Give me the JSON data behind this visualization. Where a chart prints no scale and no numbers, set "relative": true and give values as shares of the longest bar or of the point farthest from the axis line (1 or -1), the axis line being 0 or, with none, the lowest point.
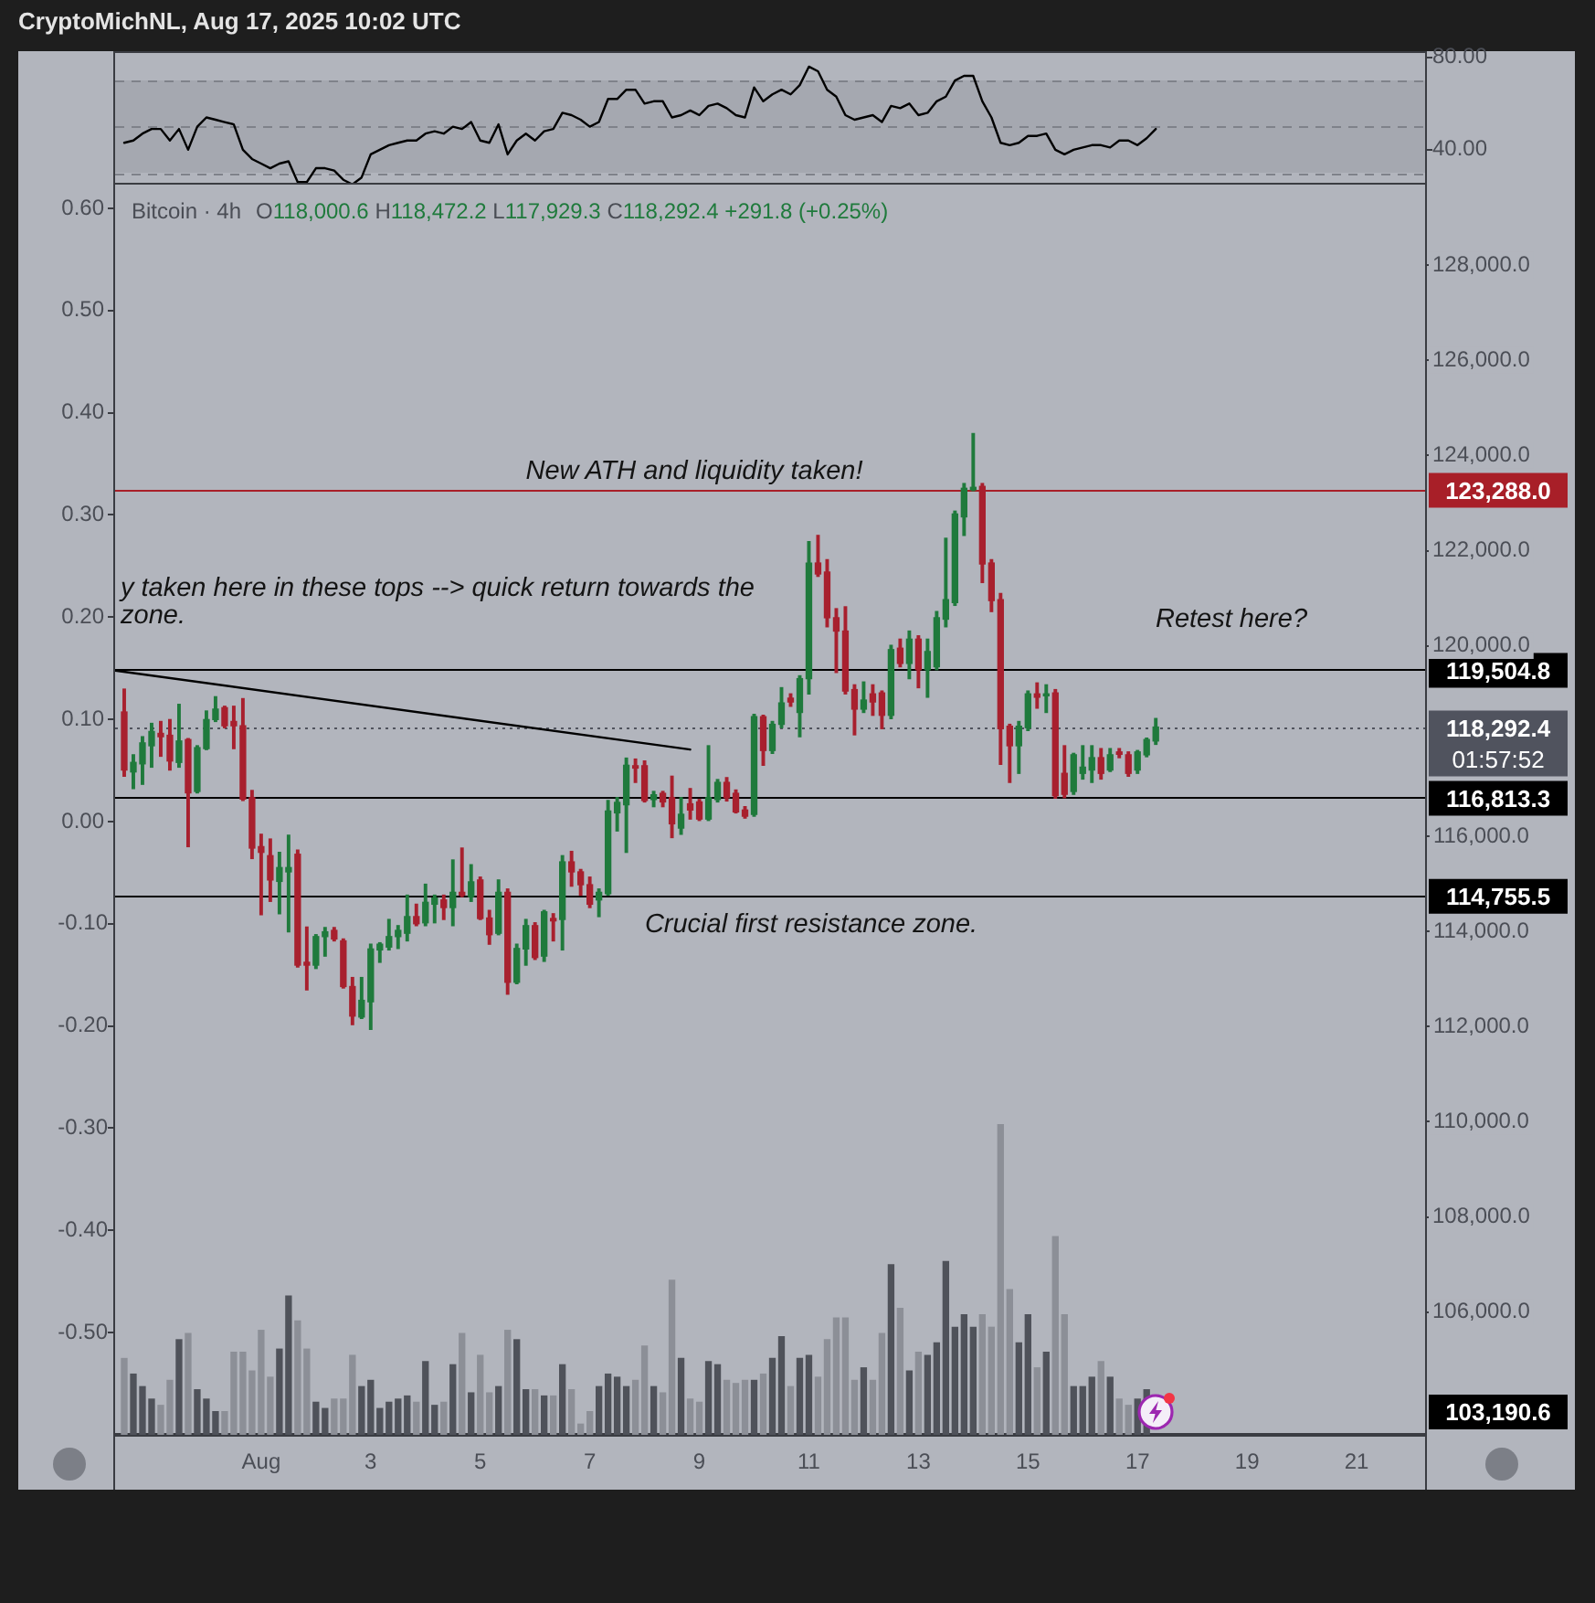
{
  "chart_data": [
    {
      "type": "line",
      "annotations": [
        "CryptoMichNL, Aug 17, 2025 10:02 UTC"
      ],
      "x": [
        "2025-07-29T12:00",
        "2025-07-29T16:00",
        "2025-07-29T20:00",
        "2025-07-30T00:00",
        "2025-07-30T04:00",
        "2025-07-30T08:00",
        "2025-07-30T12:00",
        "2025-07-30T16:00",
        "2025-07-30T20:00",
        "2025-07-31T00:00",
        "2025-07-31T04:00",
        "2025-07-31T08:00",
        "2025-07-31T12:00",
        "2025-07-31T16:00",
        "2025-07-31T20:00",
        "2025-08-01T00:00",
        "2025-08-01T04:00",
        "2025-08-01T08:00",
        "2025-08-01T12:00",
        "2025-08-01T16:00",
        "2025-08-01T20:00",
        "2025-08-02T00:00",
        "2025-08-02T04:00",
        "2025-08-02T08:00",
        "2025-08-02T12:00",
        "2025-08-02T16:00",
        "2025-08-02T20:00",
        "2025-08-03T00:00",
        "2025-08-03T04:00",
        "2025-08-03T08:00",
        "2025-08-03T12:00",
        "2025-08-03T16:00",
        "2025-08-03T20:00",
        "2025-08-04T00:00",
        "2025-08-04T04:00",
        "2025-08-04T08:00",
        "2025-08-04T12:00",
        "2025-08-04T16:00",
        "2025-08-04T20:00",
        "2025-08-05T00:00",
        "2025-08-05T04:00",
        "2025-08-05T08:00",
        "2025-08-05T12:00",
        "2025-08-05T16:00",
        "2025-08-05T20:00",
        "2025-08-06T00:00",
        "2025-08-06T04:00",
        "2025-08-06T08:00",
        "2025-08-06T12:00",
        "2025-08-06T16:00",
        "2025-08-06T20:00",
        "2025-08-07T00:00",
        "2025-08-07T04:00",
        "2025-08-07T08:00",
        "2025-08-07T12:00",
        "2025-08-07T16:00",
        "2025-08-07T20:00",
        "2025-08-08T00:00",
        "2025-08-08T04:00",
        "2025-08-08T08:00",
        "2025-08-08T12:00",
        "2025-08-08T16:00",
        "2025-08-08T20:00",
        "2025-08-09T00:00",
        "2025-08-09T04:00",
        "2025-08-09T08:00",
        "2025-08-09T12:00",
        "2025-08-09T16:00",
        "2025-08-09T20:00",
        "2025-08-10T00:00",
        "2025-08-10T04:00",
        "2025-08-10T08:00",
        "2025-08-10T12:00",
        "2025-08-10T16:00",
        "2025-08-10T20:00",
        "2025-08-11T00:00",
        "2025-08-11T04:00",
        "2025-08-11T08:00",
        "2025-08-11T12:00",
        "2025-08-11T16:00",
        "2025-08-11T20:00",
        "2025-08-12T00:00",
        "2025-08-12T04:00",
        "2025-08-12T08:00",
        "2025-08-12T12:00",
        "2025-08-12T16:00",
        "2025-08-12T20:00",
        "2025-08-13T00:00",
        "2025-08-13T04:00",
        "2025-08-13T08:00",
        "2025-08-13T12:00",
        "2025-08-13T16:00",
        "2025-08-13T20:00",
        "2025-08-14T00:00",
        "2025-08-14T04:00",
        "2025-08-14T08:00",
        "2025-08-14T12:00",
        "2025-08-14T16:00",
        "2025-08-14T20:00",
        "2025-08-15T00:00",
        "2025-08-15T04:00",
        "2025-08-15T08:00",
        "2025-08-15T12:00",
        "2025-08-15T16:00",
        "2025-08-15T20:00",
        "2025-08-16T00:00",
        "2025-08-16T04:00",
        "2025-08-16T08:00",
        "2025-08-16T12:00",
        "2025-08-16T16:00",
        "2025-08-16T20:00",
        "2025-08-17T00:00",
        "2025-08-17T04:00",
        "2025-08-17T08:00"
      ],
      "values": [
        43,
        44,
        47,
        49,
        49,
        44,
        49,
        40,
        50,
        54,
        53,
        52,
        51,
        40,
        36,
        34,
        32,
        34,
        35,
        26,
        26,
        32,
        32,
        31,
        27,
        25,
        28,
        38,
        40,
        42,
        43,
        44,
        44,
        47,
        48,
        47,
        50,
        49,
        52,
        44,
        43,
        51,
        38,
        44,
        47,
        44,
        48,
        49,
        56,
        55,
        53,
        50,
        52,
        62,
        62,
        66,
        66,
        60,
        61,
        61,
        54,
        55,
        57,
        55,
        59,
        60,
        58,
        55,
        54,
        67,
        61,
        64,
        66,
        64,
        68,
        76,
        74,
        66,
        63,
        55,
        53,
        54,
        55,
        52,
        59,
        58,
        60,
        55,
        56,
        61,
        63,
        70,
        72,
        72,
        61,
        54,
        43,
        42,
        43,
        46,
        46,
        47,
        40,
        38,
        40,
        41,
        42,
        42,
        41,
        44,
        44,
        42,
        45,
        49
      ],
      "color": "#000000",
      "xlim": [
        "2025-07-29T08:00",
        "2025-08-22T06:00"
      ],
      "ylim": [
        24.9,
        82.7
      ],
      "yticks": [
        {
          "value": 80,
          "label": "80.00"
        },
        {
          "value": 40,
          "label": "40.00"
        }
      ],
      "bands": [
        {
          "axis": "y",
          "from": 30,
          "to": 70,
          "color": "#a5a8b0"
        }
      ],
      "ref_lines": [
        {
          "axis": "y",
          "value": 70,
          "color": "#7f828a",
          "line_style": "dashed"
        },
        {
          "axis": "y",
          "value": 50,
          "color": "#7f828a",
          "line_style": "dashed"
        },
        {
          "axis": "y",
          "value": 30,
          "color": "#7f828a",
          "line_style": "dashed"
        }
      ],
      "tick_labels": "y"
    },
    {
      "type": "candlestick",
      "title": "Bitcoin · 4h",
      "subtitle": "O118,000.6 H118,472.2 L117,929.3 C118,292.4 +291.8 (+0.25%)",
      "x": [
        "2025-07-29T12:00",
        "2025-07-29T16:00",
        "2025-07-29T20:00",
        "2025-07-30T00:00",
        "2025-07-30T04:00",
        "2025-07-30T08:00",
        "2025-07-30T12:00",
        "2025-07-30T16:00",
        "2025-07-30T20:00",
        "2025-07-31T00:00",
        "2025-07-31T04:00",
        "2025-07-31T08:00",
        "2025-07-31T12:00",
        "2025-07-31T16:00",
        "2025-07-31T20:00",
        "2025-08-01T00:00",
        "2025-08-01T04:00",
        "2025-08-01T08:00",
        "2025-08-01T12:00",
        "2025-08-01T16:00",
        "2025-08-01T20:00",
        "2025-08-02T00:00",
        "2025-08-02T04:00",
        "2025-08-02T08:00",
        "2025-08-02T12:00",
        "2025-08-02T16:00",
        "2025-08-02T20:00",
        "2025-08-03T00:00",
        "2025-08-03T04:00",
        "2025-08-03T08:00",
        "2025-08-03T12:00",
        "2025-08-03T16:00",
        "2025-08-03T20:00",
        "2025-08-04T00:00",
        "2025-08-04T04:00",
        "2025-08-04T08:00",
        "2025-08-04T12:00",
        "2025-08-04T16:00",
        "2025-08-04T20:00",
        "2025-08-05T00:00",
        "2025-08-05T04:00",
        "2025-08-05T08:00",
        "2025-08-05T12:00",
        "2025-08-05T16:00",
        "2025-08-05T20:00",
        "2025-08-06T00:00",
        "2025-08-06T04:00",
        "2025-08-06T08:00",
        "2025-08-06T12:00",
        "2025-08-06T16:00",
        "2025-08-06T20:00",
        "2025-08-07T00:00",
        "2025-08-07T04:00",
        "2025-08-07T08:00",
        "2025-08-07T12:00",
        "2025-08-07T16:00",
        "2025-08-07T20:00",
        "2025-08-08T00:00",
        "2025-08-08T04:00",
        "2025-08-08T08:00",
        "2025-08-08T12:00",
        "2025-08-08T16:00",
        "2025-08-08T20:00",
        "2025-08-09T00:00",
        "2025-08-09T04:00",
        "2025-08-09T08:00",
        "2025-08-09T12:00",
        "2025-08-09T16:00",
        "2025-08-09T20:00",
        "2025-08-10T00:00",
        "2025-08-10T04:00",
        "2025-08-10T08:00",
        "2025-08-10T12:00",
        "2025-08-10T16:00",
        "2025-08-10T20:00",
        "2025-08-11T00:00",
        "2025-08-11T04:00",
        "2025-08-11T08:00",
        "2025-08-11T12:00",
        "2025-08-11T16:00",
        "2025-08-11T20:00",
        "2025-08-12T00:00",
        "2025-08-12T04:00",
        "2025-08-12T08:00",
        "2025-08-12T12:00",
        "2025-08-12T16:00",
        "2025-08-12T20:00",
        "2025-08-13T00:00",
        "2025-08-13T04:00",
        "2025-08-13T08:00",
        "2025-08-13T12:00",
        "2025-08-13T16:00",
        "2025-08-13T20:00",
        "2025-08-14T00:00",
        "2025-08-14T04:00",
        "2025-08-14T08:00",
        "2025-08-14T12:00",
        "2025-08-14T16:00",
        "2025-08-14T20:00",
        "2025-08-15T00:00",
        "2025-08-15T04:00",
        "2025-08-15T08:00",
        "2025-08-15T12:00",
        "2025-08-15T16:00",
        "2025-08-15T20:00",
        "2025-08-16T00:00",
        "2025-08-16T04:00",
        "2025-08-16T08:00",
        "2025-08-16T12:00",
        "2025-08-16T16:00",
        "2025-08-16T20:00",
        "2025-08-17T00:00",
        "2025-08-17T04:00",
        "2025-08-17T08:00"
      ],
      "ohlc": [
        [
          118610,
          119090,
          117260,
          117390
        ],
        [
          117350,
          117710,
          117000,
          117550
        ],
        [
          117520,
          118090,
          117090,
          117960
        ],
        [
          117900,
          118370,
          117450,
          118200
        ],
        [
          118160,
          118410,
          117680,
          118090
        ],
        [
          118120,
          118450,
          117390,
          117580
        ],
        [
          117550,
          118770,
          117450,
          118000
        ],
        [
          118030,
          118050,
          115780,
          116910
        ],
        [
          116940,
          117900,
          116910,
          117860
        ],
        [
          117840,
          118630,
          117820,
          118450
        ],
        [
          118450,
          118930,
          118410,
          118670
        ],
        [
          118700,
          118730,
          118280,
          118320
        ],
        [
          118410,
          118730,
          117840,
          118320
        ],
        [
          118320,
          118890,
          116750,
          116780
        ],
        [
          116810,
          116960,
          115530,
          115750
        ],
        [
          115780,
          116040,
          114350,
          115660
        ],
        [
          115590,
          115940,
          114630,
          115080
        ],
        [
          115050,
          115660,
          114370,
          115340
        ],
        [
          115250,
          116020,
          113990,
          115340
        ],
        [
          115620,
          115710,
          113250,
          113290
        ],
        [
          113350,
          114090,
          112770,
          113290
        ],
        [
          113290,
          113930,
          113220,
          113890
        ],
        [
          113890,
          114080,
          113480,
          113990
        ],
        [
          114020,
          114080,
          113800,
          113840
        ],
        [
          113800,
          113840,
          112810,
          112840
        ],
        [
          112840,
          113030,
          112040,
          112220
        ],
        [
          112200,
          113030,
          112170,
          112550
        ],
        [
          112520,
          113730,
          111940,
          113630
        ],
        [
          113610,
          113760,
          113350,
          113730
        ],
        [
          113670,
          114250,
          113610,
          113890
        ],
        [
          113890,
          114120,
          113640,
          114020
        ],
        [
          113960,
          114760,
          113800,
          114310
        ],
        [
          114310,
          114570,
          114120,
          114160
        ],
        [
          114180,
          114990,
          114120,
          114610
        ],
        [
          114570,
          114760,
          114180,
          114700
        ],
        [
          114660,
          114760,
          114250,
          114500
        ],
        [
          114500,
          115500,
          114120,
          114820
        ],
        [
          114820,
          115750,
          114730,
          114760
        ],
        [
          114730,
          115400,
          114630,
          115040
        ],
        [
          115080,
          115140,
          114250,
          114270
        ],
        [
          114280,
          114440,
          113730,
          113930
        ],
        [
          113960,
          115080,
          113930,
          114820
        ],
        [
          114820,
          114890,
          112680,
          112930
        ],
        [
          112930,
          113730,
          112900,
          113640
        ],
        [
          113630,
          114250,
          113290,
          114120
        ],
        [
          114120,
          114180,
          113410,
          113450
        ],
        [
          113480,
          114440,
          113370,
          114410
        ],
        [
          114270,
          114370,
          113800,
          114220
        ],
        [
          114250,
          115590,
          113610,
          115460
        ],
        [
          115460,
          115680,
          114950,
          115250
        ],
        [
          115250,
          115300,
          114760,
          114980
        ],
        [
          114980,
          115140,
          114500,
          114570
        ],
        [
          114660,
          114890,
          114310,
          114820
        ],
        [
          114790,
          116750,
          114760,
          116530
        ],
        [
          116490,
          116810,
          116110,
          116710
        ],
        [
          116660,
          117640,
          115660,
          117490
        ],
        [
          117480,
          117620,
          117130,
          117430
        ],
        [
          117480,
          117580,
          116720,
          116750
        ],
        [
          116770,
          116940,
          116620,
          116870
        ],
        [
          116900,
          116940,
          116620,
          116720
        ],
        [
          116810,
          117260,
          115970,
          116260
        ],
        [
          116170,
          116810,
          116040,
          116460
        ],
        [
          116680,
          117000,
          116360,
          116550
        ],
        [
          116720,
          116770,
          116330,
          116360
        ],
        [
          116360,
          117900,
          116330,
          116810
        ],
        [
          116770,
          117190,
          116720,
          117130
        ],
        [
          117130,
          117230,
          116740,
          116810
        ],
        [
          116900,
          116970,
          116490,
          116510
        ],
        [
          116550,
          116620,
          116380,
          116420
        ],
        [
          116460,
          118560,
          116420,
          118510
        ],
        [
          118510,
          118540,
          117490,
          117800
        ],
        [
          117800,
          118410,
          117740,
          118350
        ],
        [
          118350,
          119120,
          118280,
          118800
        ],
        [
          118900,
          118990,
          118730,
          118820
        ],
        [
          118600,
          119370,
          118090,
          119310
        ],
        [
          119310,
          122190,
          118990,
          121740
        ],
        [
          121740,
          122320,
          121460,
          121510
        ],
        [
          121550,
          121810,
          120400,
          120590
        ],
        [
          120590,
          120780,
          119440,
          120310
        ],
        [
          120310,
          120820,
          118990,
          119050
        ],
        [
          119080,
          119180,
          118130,
          118670
        ],
        [
          118670,
          119240,
          118600,
          118860
        ],
        [
          118990,
          119180,
          118540,
          118820
        ],
        [
          119010,
          119050,
          118260,
          118540
        ],
        [
          118540,
          120010,
          118470,
          119920
        ],
        [
          119950,
          120140,
          119560,
          119630
        ],
        [
          119630,
          120310,
          119310,
          120140
        ],
        [
          120140,
          120210,
          119120,
          119500
        ],
        [
          119500,
          120140,
          118920,
          119880
        ],
        [
          119560,
          120720,
          119500,
          120590
        ],
        [
          120560,
          122260,
          120400,
          120970
        ],
        [
          120910,
          122830,
          120850,
          122770
        ],
        [
          122710,
          123410,
          122320,
          123310
        ],
        [
          123280,
          124460,
          123260,
          123330
        ],
        [
          123350,
          123410,
          121330,
          121720
        ],
        [
          121740,
          121810,
          120720,
          120950
        ],
        [
          120970,
          121100,
          117510,
          118260
        ],
        [
          118310,
          118350,
          117130,
          117900
        ],
        [
          117900,
          118410,
          117320,
          118310
        ],
        [
          118280,
          119050,
          118220,
          118990
        ],
        [
          118990,
          119220,
          118690,
          118920
        ],
        [
          118950,
          119180,
          118600,
          118990
        ],
        [
          119010,
          119080,
          116800,
          116850
        ],
        [
          117320,
          117900,
          116810,
          116880
        ],
        [
          116940,
          117740,
          116880,
          117710
        ],
        [
          117320,
          117900,
          117200,
          117450
        ],
        [
          117390,
          117900,
          117130,
          117650
        ],
        [
          117650,
          117840,
          117200,
          117320
        ],
        [
          117390,
          117840,
          117360,
          117710
        ],
        [
          117770,
          117840,
          117650,
          117720
        ],
        [
          117710,
          117770,
          117260,
          117320
        ],
        [
          117390,
          117800,
          117320,
          117770
        ],
        [
          117710,
          118060,
          117670,
          118030
        ],
        [
          118000.6,
          118472.2,
          117929.3,
          118292.4
        ]
      ],
      "colors": [
        "#a8202e",
        "#1f7a3c",
        "#1f7a3c",
        "#1f7a3c",
        "#a8202e",
        "#a8202e",
        "#1f7a3c",
        "#a8202e",
        "#1f7a3c",
        "#1f7a3c",
        "#1f7a3c",
        "#a8202e",
        "#a8202e",
        "#a8202e",
        "#a8202e",
        "#a8202e",
        "#a8202e",
        "#1f7a3c",
        "#1f7a3c",
        "#a8202e",
        "#a8202e",
        "#1f7a3c",
        "#1f7a3c",
        "#a8202e",
        "#a8202e",
        "#a8202e",
        "#1f7a3c",
        "#1f7a3c",
        "#1f7a3c",
        "#1f7a3c",
        "#1f7a3c",
        "#1f7a3c",
        "#a8202e",
        "#1f7a3c",
        "#1f7a3c",
        "#a8202e",
        "#1f7a3c",
        "#a8202e",
        "#1f7a3c",
        "#a8202e",
        "#a8202e",
        "#1f7a3c",
        "#a8202e",
        "#1f7a3c",
        "#1f7a3c",
        "#a8202e",
        "#1f7a3c",
        "#a8202e",
        "#1f7a3c",
        "#a8202e",
        "#a8202e",
        "#a8202e",
        "#1f7a3c",
        "#1f7a3c",
        "#1f7a3c",
        "#1f7a3c",
        "#a8202e",
        "#a8202e",
        "#1f7a3c",
        "#a8202e",
        "#a8202e",
        "#1f7a3c",
        "#a8202e",
        "#a8202e",
        "#1f7a3c",
        "#1f7a3c",
        "#a8202e",
        "#a8202e",
        "#a8202e",
        "#1f7a3c",
        "#a8202e",
        "#1f7a3c",
        "#1f7a3c",
        "#a8202e",
        "#1f7a3c",
        "#1f7a3c",
        "#a8202e",
        "#a8202e",
        "#a8202e",
        "#a8202e",
        "#a8202e",
        "#1f7a3c",
        "#a8202e",
        "#a8202e",
        "#1f7a3c",
        "#a8202e",
        "#1f7a3c",
        "#a8202e",
        "#1f7a3c",
        "#1f7a3c",
        "#1f7a3c",
        "#1f7a3c",
        "#1f7a3c",
        "#1f7a3c",
        "#a8202e",
        "#a8202e",
        "#a8202e",
        "#a8202e",
        "#1f7a3c",
        "#1f7a3c",
        "#a8202e",
        "#1f7a3c",
        "#a8202e",
        "#a8202e",
        "#1f7a3c",
        "#1f7a3c",
        "#1f7a3c",
        "#a8202e",
        "#1f7a3c",
        "#a8202e",
        "#a8202e",
        "#1f7a3c",
        "#1f7a3c",
        "#1f7a3c"
      ],
      "series": [
        {
          "type": "line",
          "x": [
            "2025-07-29T08:00",
            "2025-08-08T20:00"
          ],
          "values": [
            119480,
            117820
          ],
          "color": "#000000"
        }
      ],
      "xlim": [
        "2025-07-29T08:00",
        "2025-08-22T06:00"
      ],
      "xticks": [
        {
          "value": "2025-08-01",
          "label": "Aug"
        },
        {
          "value": "2025-08-03",
          "label": "3"
        },
        {
          "value": "2025-08-05",
          "label": "5"
        },
        {
          "value": "2025-08-07",
          "label": "7"
        },
        {
          "value": "2025-08-09",
          "label": "9"
        },
        {
          "value": "2025-08-11",
          "label": "11"
        },
        {
          "value": "2025-08-13",
          "label": "13"
        },
        {
          "value": "2025-08-15",
          "label": "15"
        },
        {
          "value": "2025-08-17",
          "label": "17"
        },
        {
          "value": "2025-08-19",
          "label": "19"
        },
        {
          "value": "2025-08-21",
          "label": "21"
        }
      ],
      "ylim": [
        103420,
        129730
      ],
      "yticks": [
        {
          "value": 128000,
          "label": "128,000.0"
        },
        {
          "value": 126000,
          "label": "126,000.0"
        },
        {
          "value": 124000,
          "label": "124,000.0"
        },
        {
          "value": 122000,
          "label": "122,000.0"
        },
        {
          "value": 120000,
          "label": "120,000.0"
        },
        {
          "value": 116000,
          "label": "116,000.0"
        },
        {
          "value": 114000,
          "label": "114,000.0"
        },
        {
          "value": 112000,
          "label": "112,000.0"
        },
        {
          "value": 110000,
          "label": "110,000.0"
        },
        {
          "value": 108000,
          "label": "108,000.0"
        },
        {
          "value": 106000,
          "label": "106,000.0"
        }
      ],
      "y2lim": [
        -0.6,
        0.625
      ],
      "y2ticks": [
        {
          "value": 0.6,
          "label": "0.60"
        },
        {
          "value": 0.5,
          "label": "0.50"
        },
        {
          "value": 0.4,
          "label": "0.40"
        },
        {
          "value": 0.3,
          "label": "0.30"
        },
        {
          "value": 0.2,
          "label": "0.20"
        },
        {
          "value": 0.1,
          "label": "0.10"
        },
        {
          "value": 0,
          "label": "0.00"
        },
        {
          "value": -0.1,
          "label": "-0.10"
        },
        {
          "value": -0.2,
          "label": "-0.20"
        },
        {
          "value": -0.3,
          "label": "-0.30"
        },
        {
          "value": -0.4,
          "label": "-0.40"
        },
        {
          "value": -0.5,
          "label": "-0.50"
        }
      ],
      "ref_lines": [
        {
          "axis": "y",
          "value": 123288,
          "label": "123,288.0",
          "color": "#a81f28"
        },
        {
          "axis": "y",
          "value": 119504.8,
          "label": "119,504.8",
          "color": "#000000"
        },
        {
          "axis": "y",
          "value": 118292.4,
          "label": "118,292.4\n01:57:52",
          "color": "#50535e",
          "line_style": "dotted"
        },
        {
          "axis": "y",
          "value": 116813.3,
          "label": "116,813.3",
          "color": "#000000"
        },
        {
          "axis": "y",
          "value": 114755.5,
          "label": "114,755.5",
          "color": "#000000"
        }
      ],
      "annotations": [
        "New ATH and liquidity taken!",
        "y taken here in these tops --> quick return towards the",
        "zone.",
        "Retest here?",
        "Crucial first resistance zone.",
        "103,190.6"
      ]
    },
    {
      "type": "bar",
      "relative": true,
      "x": [
        "2025-07-29T12:00",
        "2025-07-29T16:00",
        "2025-07-29T20:00",
        "2025-07-30T00:00",
        "2025-07-30T04:00",
        "2025-07-30T08:00",
        "2025-07-30T12:00",
        "2025-07-30T16:00",
        "2025-07-30T20:00",
        "2025-07-31T00:00",
        "2025-07-31T04:00",
        "2025-07-31T08:00",
        "2025-07-31T12:00",
        "2025-07-31T16:00",
        "2025-07-31T20:00",
        "2025-08-01T00:00",
        "2025-08-01T04:00",
        "2025-08-01T08:00",
        "2025-08-01T12:00",
        "2025-08-01T16:00",
        "2025-08-01T20:00",
        "2025-08-02T00:00",
        "2025-08-02T04:00",
        "2025-08-02T08:00",
        "2025-08-02T12:00",
        "2025-08-02T16:00",
        "2025-08-02T20:00",
        "2025-08-03T00:00",
        "2025-08-03T04:00",
        "2025-08-03T08:00",
        "2025-08-03T12:00",
        "2025-08-03T16:00",
        "2025-08-03T20:00",
        "2025-08-04T00:00",
        "2025-08-04T04:00",
        "2025-08-04T08:00",
        "2025-08-04T12:00",
        "2025-08-04T16:00",
        "2025-08-04T20:00",
        "2025-08-05T00:00",
        "2025-08-05T04:00",
        "2025-08-05T08:00",
        "2025-08-05T12:00",
        "2025-08-05T16:00",
        "2025-08-05T20:00",
        "2025-08-06T00:00",
        "2025-08-06T04:00",
        "2025-08-06T08:00",
        "2025-08-06T12:00",
        "2025-08-06T16:00",
        "2025-08-06T20:00",
        "2025-08-07T00:00",
        "2025-08-07T04:00",
        "2025-08-07T08:00",
        "2025-08-07T12:00",
        "2025-08-07T16:00",
        "2025-08-07T20:00",
        "2025-08-08T00:00",
        "2025-08-08T04:00",
        "2025-08-08T08:00",
        "2025-08-08T12:00",
        "2025-08-08T16:00",
        "2025-08-08T20:00",
        "2025-08-09T00:00",
        "2025-08-09T04:00",
        "2025-08-09T08:00",
        "2025-08-09T12:00",
        "2025-08-09T16:00",
        "2025-08-09T20:00",
        "2025-08-10T00:00",
        "2025-08-10T04:00",
        "2025-08-10T08:00",
        "2025-08-10T12:00",
        "2025-08-10T16:00",
        "2025-08-10T20:00",
        "2025-08-11T00:00",
        "2025-08-11T04:00",
        "2025-08-11T08:00",
        "2025-08-11T12:00",
        "2025-08-11T16:00",
        "2025-08-11T20:00",
        "2025-08-12T00:00",
        "2025-08-12T04:00",
        "2025-08-12T08:00",
        "2025-08-12T12:00",
        "2025-08-12T16:00",
        "2025-08-12T20:00",
        "2025-08-13T00:00",
        "2025-08-13T04:00",
        "2025-08-13T08:00",
        "2025-08-13T12:00",
        "2025-08-13T16:00",
        "2025-08-13T20:00",
        "2025-08-14T00:00",
        "2025-08-14T04:00",
        "2025-08-14T08:00",
        "2025-08-14T12:00",
        "2025-08-14T16:00",
        "2025-08-14T20:00",
        "2025-08-15T00:00",
        "2025-08-15T04:00",
        "2025-08-15T08:00",
        "2025-08-15T12:00",
        "2025-08-15T16:00",
        "2025-08-15T20:00",
        "2025-08-16T00:00",
        "2025-08-16T04:00",
        "2025-08-16T08:00",
        "2025-08-16T12:00",
        "2025-08-16T16:00",
        "2025-08-16T20:00",
        "2025-08-17T00:00",
        "2025-08-17T04:00"
      ],
      "values": [
        0.25,
        0.2,
        0.16,
        0.12,
        0.1,
        0.18,
        0.31,
        0.33,
        0.15,
        0.12,
        0.08,
        0.08,
        0.27,
        0.27,
        0.21,
        0.34,
        0.19,
        0.28,
        0.45,
        0.37,
        0.28,
        0.11,
        0.09,
        0.12,
        0.12,
        0.26,
        0.16,
        0.18,
        0.09,
        0.11,
        0.12,
        0.13,
        0.11,
        0.24,
        0.1,
        0.11,
        0.23,
        0.33,
        0.14,
        0.26,
        0.14,
        0.16,
        0.34,
        0.31,
        0.15,
        0.15,
        0.13,
        0.13,
        0.23,
        0.15,
        0.04,
        0.08,
        0.16,
        0.2,
        0.19,
        0.16,
        0.18,
        0.29,
        0.16,
        0.14,
        0.5,
        0.25,
        0.12,
        0.11,
        0.24,
        0.23,
        0.18,
        0.17,
        0.18,
        0.18,
        0.2,
        0.25,
        0.32,
        0.16,
        0.25,
        0.26,
        0.19,
        0.31,
        0.38,
        0.38,
        0.18,
        0.22,
        0.18,
        0.33,
        0.55,
        0.41,
        0.21,
        0.27,
        0.26,
        0.3,
        0.56,
        0.35,
        0.39,
        0.35,
        0.39,
        0.35,
        1,
        0.47,
        0.3,
        0.39,
        0.22,
        0.27,
        0.64,
        0.39,
        0.16,
        0.16,
        0.19,
        0.24,
        0.19,
        0.12,
        0.1,
        0.12,
        0.15
      ],
      "colors": [
        "#8c8f97",
        "#4f525a",
        "#4f525a",
        "#4f525a",
        "#8c8f97",
        "#8c8f97",
        "#4f525a",
        "#8c8f97",
        "#4f525a",
        "#4f525a",
        "#4f525a",
        "#8c8f97",
        "#8c8f97",
        "#8c8f97",
        "#8c8f97",
        "#8c8f97",
        "#8c8f97",
        "#4f525a",
        "#4f525a",
        "#8c8f97",
        "#8c8f97",
        "#4f525a",
        "#4f525a",
        "#8c8f97",
        "#8c8f97",
        "#8c8f97",
        "#4f525a",
        "#4f525a",
        "#4f525a",
        "#4f525a",
        "#4f525a",
        "#4f525a",
        "#8c8f97",
        "#4f525a",
        "#4f525a",
        "#8c8f97",
        "#4f525a",
        "#8c8f97",
        "#4f525a",
        "#8c8f97",
        "#8c8f97",
        "#4f525a",
        "#8c8f97",
        "#4f525a",
        "#4f525a",
        "#8c8f97",
        "#4f525a",
        "#8c8f97",
        "#4f525a",
        "#8c8f97",
        "#8c8f97",
        "#8c8f97",
        "#4f525a",
        "#4f525a",
        "#4f525a",
        "#4f525a",
        "#8c8f97",
        "#8c8f97",
        "#4f525a",
        "#8c8f97",
        "#8c8f97",
        "#4f525a",
        "#8c8f97",
        "#8c8f97",
        "#4f525a",
        "#4f525a",
        "#8c8f97",
        "#8c8f97",
        "#8c8f97",
        "#4f525a",
        "#8c8f97",
        "#4f525a",
        "#4f525a",
        "#8c8f97",
        "#4f525a",
        "#4f525a",
        "#8c8f97",
        "#8c8f97",
        "#8c8f97",
        "#8c8f97",
        "#8c8f97",
        "#4f525a",
        "#8c8f97",
        "#8c8f97",
        "#4f525a",
        "#8c8f97",
        "#4f525a",
        "#8c8f97",
        "#4f525a",
        "#4f525a",
        "#4f525a",
        "#4f525a",
        "#4f525a",
        "#4f525a",
        "#8c8f97",
        "#8c8f97",
        "#8c8f97",
        "#8c8f97",
        "#4f525a",
        "#4f525a",
        "#8c8f97",
        "#4f525a",
        "#8c8f97",
        "#8c8f97",
        "#4f525a",
        "#4f525a",
        "#4f525a",
        "#8c8f97",
        "#4f525a",
        "#8c8f97",
        "#8c8f97",
        "#4f525a",
        "#4f525a"
      ],
      "xlim": [
        "2025-07-29T08:00",
        "2025-08-22T06:00"
      ],
      "tick_labels": false
    }
  ]
}
